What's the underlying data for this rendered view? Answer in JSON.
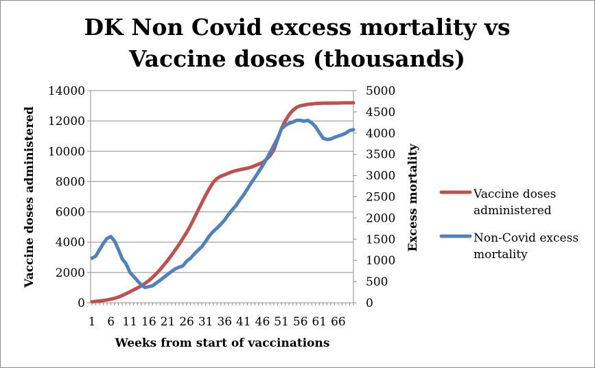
{
  "chart_data": {
    "type": "line",
    "title_lines": [
      "DK Non Covid excess mortality vs",
      "Vaccine doses (thousands)"
    ],
    "xlabel": "Weeks from start of vaccinations",
    "ylabel_left": "Vaccine doses administered",
    "ylabel_right": "Excess mortality",
    "x_tick_labels": [
      "1",
      "6",
      "11",
      "16",
      "21",
      "26",
      "31",
      "36",
      "41",
      "46",
      "51",
      "56",
      "61",
      "66"
    ],
    "x_tick_values": [
      1,
      6,
      11,
      16,
      21,
      26,
      31,
      36,
      41,
      46,
      51,
      56,
      61,
      66
    ],
    "xlim": [
      1,
      70
    ],
    "y_left_ticks": [
      "0",
      "2000",
      "4000",
      "6000",
      "8000",
      "10000",
      "12000",
      "14000"
    ],
    "ylim_left": [
      0,
      14000
    ],
    "y_right_ticks": [
      "0",
      "500",
      "1000",
      "1500",
      "2000",
      "2500",
      "3000",
      "3500",
      "4000",
      "4500",
      "5000"
    ],
    "ylim_right": [
      0,
      5000
    ],
    "grid": "horizontal",
    "legend_position": "right",
    "series": [
      {
        "name": "Vaccine doses administered",
        "axis": "left",
        "color": "#C0504D",
        "x": [
          1,
          2,
          3,
          4,
          5,
          6,
          7,
          8,
          9,
          10,
          11,
          12,
          13,
          14,
          15,
          16,
          17,
          18,
          19,
          20,
          21,
          22,
          23,
          24,
          25,
          26,
          27,
          28,
          29,
          30,
          31,
          32,
          33,
          34,
          35,
          36,
          37,
          38,
          39,
          40,
          41,
          42,
          43,
          44,
          45,
          46,
          47,
          48,
          49,
          50,
          51,
          52,
          53,
          54,
          55,
          56,
          57,
          58,
          59,
          60,
          61,
          62,
          63,
          64,
          65,
          66,
          67,
          68,
          69,
          70
        ],
        "values": [
          60,
          90,
          120,
          150,
          190,
          240,
          300,
          380,
          480,
          600,
          720,
          850,
          980,
          1120,
          1280,
          1460,
          1680,
          1930,
          2200,
          2500,
          2800,
          3150,
          3500,
          3850,
          4250,
          4650,
          5100,
          5600,
          6100,
          6600,
          7100,
          7550,
          7950,
          8200,
          8350,
          8450,
          8550,
          8650,
          8720,
          8780,
          8830,
          8880,
          8950,
          9050,
          9150,
          9250,
          9450,
          9700,
          10100,
          10800,
          11500,
          12000,
          12400,
          12700,
          12900,
          13000,
          13050,
          13100,
          13120,
          13150,
          13160,
          13170,
          13170,
          13170,
          13180,
          13180,
          13190,
          13200,
          13200,
          13200
        ]
      },
      {
        "name": "Non-Covid excess mortality",
        "axis": "right",
        "color": "#4F81BD",
        "x": [
          1,
          2,
          3,
          4,
          5,
          6,
          7,
          8,
          9,
          10,
          11,
          12,
          13,
          14,
          15,
          16,
          17,
          18,
          19,
          20,
          21,
          22,
          23,
          24,
          25,
          26,
          27,
          28,
          29,
          30,
          31,
          32,
          33,
          34,
          35,
          36,
          37,
          38,
          39,
          40,
          41,
          42,
          43,
          44,
          45,
          46,
          47,
          48,
          49,
          50,
          51,
          52,
          53,
          54,
          55,
          56,
          57,
          58,
          59,
          60,
          61,
          62,
          63,
          64,
          65,
          66,
          67,
          68,
          69,
          70
        ],
        "values": [
          1050,
          1100,
          1250,
          1400,
          1520,
          1560,
          1450,
          1250,
          1030,
          920,
          720,
          620,
          520,
          420,
          360,
          380,
          400,
          470,
          530,
          600,
          670,
          740,
          800,
          840,
          870,
          980,
          1050,
          1150,
          1240,
          1320,
          1450,
          1580,
          1680,
          1760,
          1850,
          1950,
          2080,
          2190,
          2290,
          2420,
          2540,
          2680,
          2820,
          2950,
          3090,
          3230,
          3380,
          3540,
          3710,
          3880,
          4100,
          4180,
          4230,
          4260,
          4300,
          4300,
          4280,
          4300,
          4240,
          4150,
          4010,
          3880,
          3850,
          3860,
          3900,
          3930,
          3960,
          4000,
          4060,
          4080
        ]
      }
    ]
  }
}
